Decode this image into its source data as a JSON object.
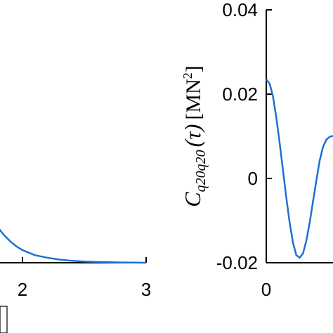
{
  "chart_data": [
    {
      "type": "line",
      "title": "",
      "xlabel": "",
      "ylabel": "",
      "xlim": [
        0,
        3
      ],
      "x_ticks": [
        "2",
        "3"
      ],
      "grid": false,
      "series_color": "#1f6fd6",
      "x": [
        1.7,
        1.75,
        1.8,
        1.85,
        1.9,
        1.95,
        2.0,
        2.1,
        2.2,
        2.3,
        2.4,
        2.5,
        2.6,
        2.7,
        2.8,
        2.9,
        3.0
      ],
      "y_rel": [
        0.42,
        0.35,
        0.28,
        0.22,
        0.17,
        0.13,
        0.1,
        0.06,
        0.04,
        0.025,
        0.015,
        0.01,
        0.006,
        0.004,
        0.002,
        0.001,
        0.0
      ]
    },
    {
      "type": "line",
      "title": "",
      "xlabel": "",
      "ylabel": "C_{q20 q20}(τ) [MN²]",
      "ylabel_parts": {
        "C": "C",
        "sub": "q20q20",
        "tau": "(τ)",
        "units_open": "[MN",
        "units_sup": "2",
        "units_close": "]"
      },
      "ylim": [
        -0.02,
        0.04
      ],
      "y_ticks": [
        "0.04",
        "0.02",
        "0",
        "-0.02"
      ],
      "x_ticks": [
        "0"
      ],
      "grid": false,
      "series_color": "#1f6fd6",
      "x": [
        0.0,
        0.05,
        0.1,
        0.15,
        0.2,
        0.25,
        0.3,
        0.35,
        0.4,
        0.45,
        0.5,
        0.55,
        0.6,
        0.65,
        0.7,
        0.75,
        0.8,
        0.85,
        0.9,
        0.95,
        1.0
      ],
      "y": [
        0.0235,
        0.0225,
        0.0195,
        0.0145,
        0.0085,
        0.002,
        -0.0045,
        -0.0105,
        -0.0152,
        -0.0182,
        -0.0188,
        -0.0178,
        -0.0148,
        -0.0105,
        -0.0055,
        -0.0005,
        0.0042,
        0.0075,
        0.0092,
        0.0099,
        0.0101
      ]
    }
  ]
}
